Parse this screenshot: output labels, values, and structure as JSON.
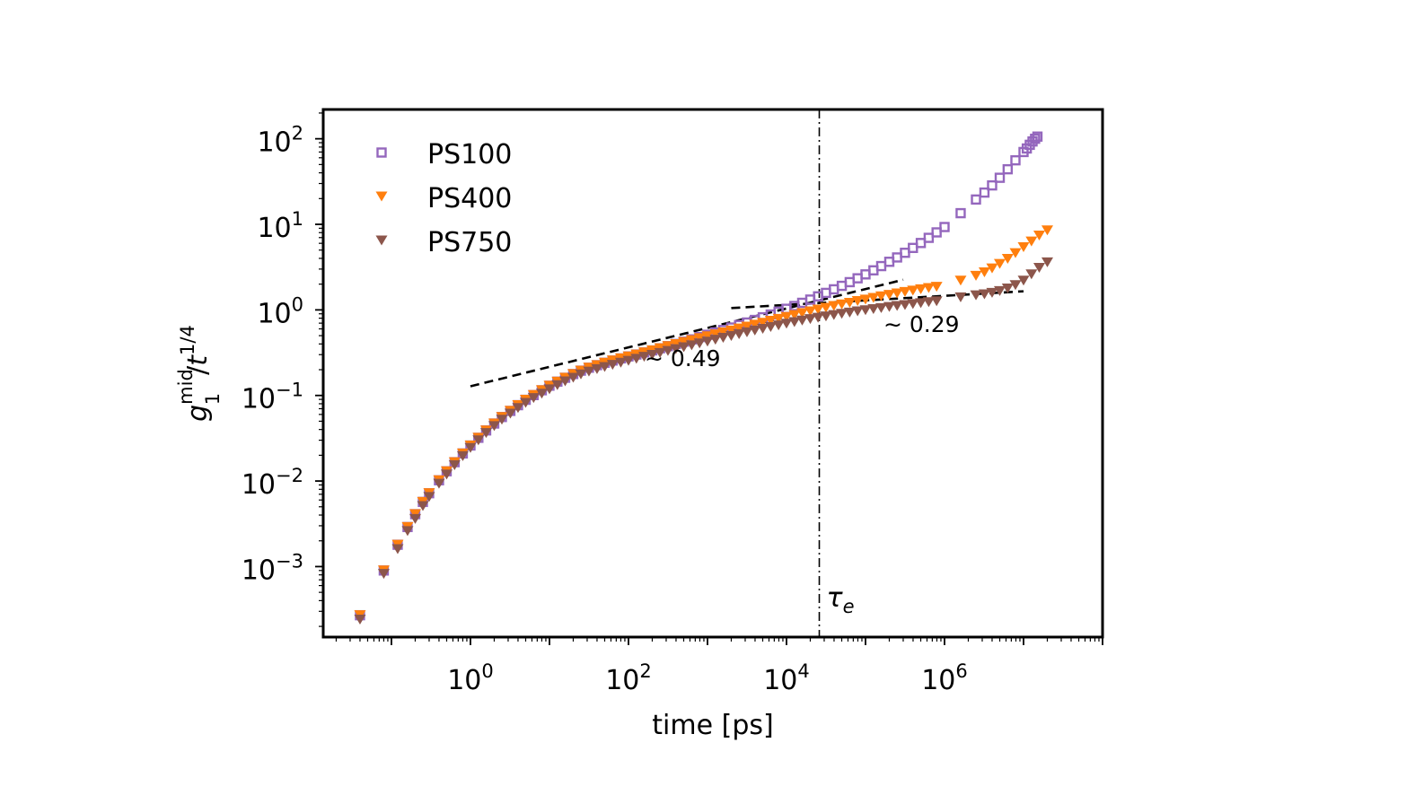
{
  "chart_data": {
    "type": "scatter",
    "xlabel": "time [ps]",
    "ylabel": {
      "base": "g",
      "subscript": "1",
      "superscript": "mid",
      "divisor": "t",
      "divisor_exponent": "1/4"
    },
    "x_scale": "log",
    "y_scale": "log",
    "xlim": [
      0.0137,
      100000000
    ],
    "ylim": [
      0.00015,
      220
    ],
    "grid": false,
    "legend_position": "top-left",
    "x_ticks": [
      {
        "value": 1,
        "base": "10",
        "exp": "0"
      },
      {
        "value": 100,
        "base": "10",
        "exp": "2"
      },
      {
        "value": 10000,
        "base": "10",
        "exp": "4"
      },
      {
        "value": 1000000,
        "base": "10",
        "exp": "6"
      }
    ],
    "y_ticks": [
      {
        "value": 0.001,
        "base": "10",
        "exp": "−3"
      },
      {
        "value": 0.01,
        "base": "10",
        "exp": "−2"
      },
      {
        "value": 0.1,
        "base": "10",
        "exp": "−1"
      },
      {
        "value": 1,
        "base": "10",
        "exp": "0"
      },
      {
        "value": 10,
        "base": "10",
        "exp": "1"
      },
      {
        "value": 100,
        "base": "10",
        "exp": "2"
      }
    ],
    "series": [
      {
        "name": "PS100",
        "marker": "square",
        "color": "#9467bd",
        "points": [
          [
            0.04,
            0.00027
          ],
          [
            0.08,
            0.0009
          ],
          [
            0.12,
            0.0018
          ],
          [
            0.16,
            0.0029
          ],
          [
            0.2,
            0.0041
          ],
          [
            0.25,
            0.0057
          ],
          [
            0.3,
            0.0072
          ],
          [
            0.4,
            0.0102
          ],
          [
            0.5,
            0.013
          ],
          [
            0.63,
            0.0166
          ],
          [
            0.8,
            0.021
          ],
          [
            1.0,
            0.026
          ],
          [
            1.26,
            0.032
          ],
          [
            1.58,
            0.039
          ],
          [
            2.0,
            0.047
          ],
          [
            2.5,
            0.056
          ],
          [
            3.2,
            0.066
          ],
          [
            4.0,
            0.077
          ],
          [
            5.0,
            0.089
          ],
          [
            6.3,
            0.101
          ],
          [
            8.0,
            0.115
          ],
          [
            10,
            0.13
          ],
          [
            12.6,
            0.145
          ],
          [
            15.8,
            0.161
          ],
          [
            20,
            0.178
          ],
          [
            25,
            0.195
          ],
          [
            31.6,
            0.211
          ],
          [
            40,
            0.226
          ],
          [
            50,
            0.241
          ],
          [
            63,
            0.256
          ],
          [
            80,
            0.271
          ],
          [
            100,
            0.286
          ],
          [
            126,
            0.301
          ],
          [
            158,
            0.318
          ],
          [
            200,
            0.336
          ],
          [
            251,
            0.356
          ],
          [
            316,
            0.377
          ],
          [
            398,
            0.4
          ],
          [
            501,
            0.425
          ],
          [
            631,
            0.452
          ],
          [
            794,
            0.481
          ],
          [
            1000,
            0.512
          ],
          [
            1260,
            0.546
          ],
          [
            1580,
            0.582
          ],
          [
            2000,
            0.622
          ],
          [
            2510,
            0.665
          ],
          [
            3160,
            0.712
          ],
          [
            3980,
            0.763
          ],
          [
            5010,
            0.82
          ],
          [
            6310,
            0.883
          ],
          [
            7940,
            0.952
          ],
          [
            10000,
            1.03
          ],
          [
            12600,
            1.11
          ],
          [
            15800,
            1.21
          ],
          [
            20000,
            1.32
          ],
          [
            25100,
            1.44
          ],
          [
            31600,
            1.58
          ],
          [
            39800,
            1.74
          ],
          [
            50100,
            1.91
          ],
          [
            63100,
            2.11
          ],
          [
            79400,
            2.34
          ],
          [
            100000,
            2.6
          ],
          [
            126000,
            2.9
          ],
          [
            158000,
            3.25
          ],
          [
            200000,
            3.65
          ],
          [
            251000,
            4.1
          ],
          [
            316000,
            4.65
          ],
          [
            398000,
            5.3
          ],
          [
            501000,
            6.05
          ],
          [
            631000,
            6.95
          ],
          [
            794000,
            8.05
          ],
          [
            1000000,
            9.3
          ],
          [
            1600000,
            13.5
          ],
          [
            2500000,
            19.5
          ],
          [
            3200000,
            23.5
          ],
          [
            4000000,
            28.5
          ],
          [
            5000000,
            35
          ],
          [
            6300000,
            44
          ],
          [
            7900000,
            56
          ],
          [
            10000000,
            70
          ],
          [
            11000000,
            77
          ],
          [
            12000000,
            85
          ],
          [
            13000000,
            93
          ],
          [
            14000000,
            100
          ],
          [
            15000000,
            106
          ]
        ]
      },
      {
        "name": "PS400",
        "marker": "triangle-down",
        "color": "#ff7f0e",
        "points": [
          [
            0.04,
            0.00027
          ],
          [
            0.08,
            0.0009
          ],
          [
            0.12,
            0.0018
          ],
          [
            0.16,
            0.0029
          ],
          [
            0.2,
            0.0041
          ],
          [
            0.25,
            0.0057
          ],
          [
            0.3,
            0.0072
          ],
          [
            0.4,
            0.0102
          ],
          [
            0.5,
            0.013
          ],
          [
            0.63,
            0.0166
          ],
          [
            0.8,
            0.021
          ],
          [
            1.0,
            0.026
          ],
          [
            1.26,
            0.032
          ],
          [
            1.58,
            0.039
          ],
          [
            2.0,
            0.047
          ],
          [
            2.5,
            0.056
          ],
          [
            3.2,
            0.066
          ],
          [
            4.0,
            0.077
          ],
          [
            5.0,
            0.089
          ],
          [
            6.3,
            0.101
          ],
          [
            8.0,
            0.115
          ],
          [
            10,
            0.13
          ],
          [
            12.6,
            0.145
          ],
          [
            15.8,
            0.161
          ],
          [
            20,
            0.178
          ],
          [
            25,
            0.195
          ],
          [
            31.6,
            0.211
          ],
          [
            40,
            0.226
          ],
          [
            50,
            0.241
          ],
          [
            63,
            0.256
          ],
          [
            80,
            0.271
          ],
          [
            100,
            0.286
          ],
          [
            126,
            0.301
          ],
          [
            158,
            0.318
          ],
          [
            200,
            0.336
          ],
          [
            251,
            0.356
          ],
          [
            316,
            0.377
          ],
          [
            398,
            0.398
          ],
          [
            501,
            0.42
          ],
          [
            631,
            0.443
          ],
          [
            794,
            0.467
          ],
          [
            1000,
            0.492
          ],
          [
            1260,
            0.518
          ],
          [
            1580,
            0.545
          ],
          [
            2000,
            0.574
          ],
          [
            2510,
            0.605
          ],
          [
            3160,
            0.637
          ],
          [
            3980,
            0.671
          ],
          [
            5010,
            0.707
          ],
          [
            6310,
            0.745
          ],
          [
            7940,
            0.785
          ],
          [
            10000,
            0.827
          ],
          [
            12600,
            0.87
          ],
          [
            15800,
            0.915
          ],
          [
            20000,
            0.962
          ],
          [
            25100,
            1.01
          ],
          [
            31600,
            1.06
          ],
          [
            39800,
            1.11
          ],
          [
            50100,
            1.16
          ],
          [
            63100,
            1.21
          ],
          [
            79400,
            1.27
          ],
          [
            100000,
            1.32
          ],
          [
            126000,
            1.38
          ],
          [
            158000,
            1.44
          ],
          [
            200000,
            1.5
          ],
          [
            251000,
            1.56
          ],
          [
            316000,
            1.62
          ],
          [
            398000,
            1.68
          ],
          [
            501000,
            1.74
          ],
          [
            631000,
            1.8
          ],
          [
            794000,
            1.86
          ],
          [
            1600000,
            2.2
          ],
          [
            2500000,
            2.5
          ],
          [
            3200000,
            2.75
          ],
          [
            4000000,
            3.05
          ],
          [
            5000000,
            3.45
          ],
          [
            6300000,
            3.95
          ],
          [
            7900000,
            4.6
          ],
          [
            10000000,
            5.4
          ],
          [
            12600000,
            6.3
          ],
          [
            15800000,
            7.4
          ],
          [
            20000000,
            8.5
          ]
        ]
      },
      {
        "name": "PS750",
        "marker": "triangle-down",
        "color": "#8c564b",
        "points": [
          [
            0.04,
            0.00024
          ],
          [
            0.08,
            0.00082
          ],
          [
            0.12,
            0.0016
          ],
          [
            0.16,
            0.0026
          ],
          [
            0.2,
            0.0036
          ],
          [
            0.25,
            0.0051
          ],
          [
            0.3,
            0.0065
          ],
          [
            0.4,
            0.0093
          ],
          [
            0.5,
            0.0119
          ],
          [
            0.63,
            0.0153
          ],
          [
            0.8,
            0.0195
          ],
          [
            1.0,
            0.0243
          ],
          [
            1.26,
            0.0299
          ],
          [
            1.58,
            0.0364
          ],
          [
            2.0,
            0.0438
          ],
          [
            2.5,
            0.052
          ],
          [
            3.2,
            0.0612
          ],
          [
            4.0,
            0.0712
          ],
          [
            5.0,
            0.082
          ],
          [
            6.3,
            0.0933
          ],
          [
            8.0,
            0.105
          ],
          [
            10,
            0.118
          ],
          [
            12.6,
            0.132
          ],
          [
            15.8,
            0.146
          ],
          [
            20,
            0.161
          ],
          [
            25,
            0.176
          ],
          [
            31.6,
            0.19
          ],
          [
            40,
            0.203
          ],
          [
            50,
            0.215
          ],
          [
            63,
            0.228
          ],
          [
            80,
            0.241
          ],
          [
            100,
            0.254
          ],
          [
            126,
            0.268
          ],
          [
            158,
            0.283
          ],
          [
            200,
            0.298
          ],
          [
            251,
            0.314
          ],
          [
            316,
            0.331
          ],
          [
            398,
            0.348
          ],
          [
            501,
            0.366
          ],
          [
            631,
            0.385
          ],
          [
            794,
            0.405
          ],
          [
            1000,
            0.426
          ],
          [
            1260,
            0.448
          ],
          [
            1580,
            0.471
          ],
          [
            2000,
            0.495
          ],
          [
            2510,
            0.52
          ],
          [
            3160,
            0.546
          ],
          [
            3980,
            0.573
          ],
          [
            5010,
            0.601
          ],
          [
            6310,
            0.63
          ],
          [
            7940,
            0.66
          ],
          [
            10000,
            0.69
          ],
          [
            12600,
            0.72
          ],
          [
            15800,
            0.75
          ],
          [
            20000,
            0.78
          ],
          [
            25100,
            0.81
          ],
          [
            31600,
            0.84
          ],
          [
            39800,
            0.87
          ],
          [
            50100,
            0.9
          ],
          [
            63100,
            0.93
          ],
          [
            79400,
            0.96
          ],
          [
            100000,
            0.99
          ],
          [
            126000,
            1.02
          ],
          [
            158000,
            1.05
          ],
          [
            200000,
            1.08
          ],
          [
            251000,
            1.11
          ],
          [
            316000,
            1.14
          ],
          [
            398000,
            1.17
          ],
          [
            501000,
            1.2
          ],
          [
            631000,
            1.23
          ],
          [
            794000,
            1.26
          ],
          [
            1600000,
            1.4
          ],
          [
            2500000,
            1.48
          ],
          [
            3200000,
            1.52
          ],
          [
            4000000,
            1.58
          ],
          [
            5000000,
            1.66
          ],
          [
            6300000,
            1.78
          ],
          [
            7900000,
            1.95
          ],
          [
            10000000,
            2.2
          ],
          [
            12600000,
            2.6
          ],
          [
            15800000,
            3.1
          ],
          [
            20000000,
            3.6
          ]
        ]
      }
    ],
    "fit_lines": [
      {
        "label": "∼ 0.49",
        "from": [
          1,
          0.128
        ],
        "to": [
          300000,
          2.25
        ]
      },
      {
        "label": "∼ 0.29",
        "from": [
          2000,
          1.05
        ],
        "to": [
          10000000,
          1.65
        ]
      }
    ],
    "vertical_line": {
      "x": 26000,
      "label": "τ",
      "label_subscript": "e"
    }
  }
}
